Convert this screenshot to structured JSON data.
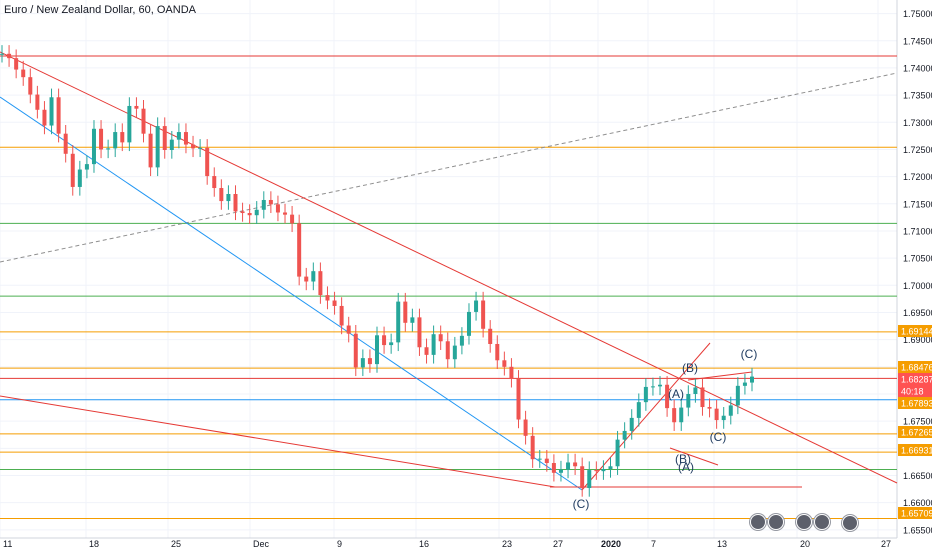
{
  "title": "Euro / New Zealand Dollar, 60, OANDA",
  "chart_data": {
    "type": "candlestick",
    "y_ticks": [
      "1.75000",
      "1.74500",
      "1.74000",
      "1.73500",
      "1.73000",
      "1.72500",
      "1.72000",
      "1.71500",
      "1.71000",
      "1.70500",
      "1.70000",
      "1.69500",
      "1.69000",
      "1.68500",
      "1.68000",
      "1.67500",
      "1.67000",
      "1.66500",
      "1.66000",
      "1.65500"
    ],
    "x_ticks": [
      "11",
      "18",
      "25",
      "Dec",
      "9",
      "16",
      "23",
      "27",
      "2020",
      "7",
      "13",
      "20",
      "27"
    ],
    "ylim": [
      1.6535,
      1.7525
    ],
    "price_labels": [
      {
        "text": "1.69144",
        "color": "#f59d00"
      },
      {
        "text": "1.68476",
        "color": "#f59d00"
      },
      {
        "text": "1.68287",
        "color": "#ff5252"
      },
      {
        "text": "40:18",
        "color": "#ff5252"
      },
      {
        "text": "1.67893",
        "color": "#f59d00"
      },
      {
        "text": "1.67265",
        "color": "#f59d00"
      },
      {
        "text": "1.66931",
        "color": "#f59d00"
      },
      {
        "text": "1.65709",
        "color": "#f59d00"
      }
    ],
    "wave_labels": [
      {
        "text": "(C)"
      },
      {
        "text": "(A)"
      },
      {
        "text": "(B)"
      },
      {
        "text": "(A)"
      },
      {
        "text": "(B)"
      },
      {
        "text": "(C)"
      },
      {
        "text": "(C)"
      }
    ],
    "colors": {
      "up": "#26a69a",
      "down": "#ef5350",
      "horizontal_red": "#e53935",
      "horizontal_orange": "#f59d00",
      "horizontal_green": "#4caf50",
      "trend_blue": "#2196f3"
    },
    "series": [
      {
        "name": "EURNZD",
        "values": [
          1.7426,
          1.7418,
          1.7397,
          1.7383,
          1.7351,
          1.7323,
          1.7294,
          1.7346,
          1.7279,
          1.7242,
          1.7181,
          1.7213,
          1.7223,
          1.7288,
          1.725,
          1.7252,
          1.7282,
          1.7263,
          1.733,
          1.7325,
          1.7279,
          1.7217,
          1.7293,
          1.7249,
          1.7268,
          1.7282,
          1.7259,
          1.7252,
          1.7253,
          1.7201,
          1.7179,
          1.7155,
          1.7168,
          1.7136,
          1.7133,
          1.7129,
          1.7139,
          1.7157,
          1.7149,
          1.7134,
          1.713,
          1.7114,
          1.7016,
          1.7007,
          1.7026,
          1.6982,
          1.6972,
          1.6962,
          1.6926,
          1.6911,
          1.6849,
          1.6866,
          1.6855,
          1.6908,
          1.689,
          1.6895,
          1.697,
          1.6931,
          1.6941,
          1.6886,
          1.6872,
          1.691,
          1.6897,
          1.6864,
          1.6889,
          1.6907,
          1.6951,
          1.6972,
          1.692,
          1.6892,
          1.6862,
          1.685,
          1.6828,
          1.6753,
          1.6723,
          1.668,
          1.6681,
          1.6673,
          1.6655,
          1.6661,
          1.6674,
          1.6667,
          1.6627,
          1.666,
          1.6658,
          1.6662,
          1.6667,
          1.6716,
          1.6732,
          1.6756,
          1.6785,
          1.6813,
          1.6814,
          1.6817,
          1.6774,
          1.6748,
          1.6775,
          1.68,
          1.6812,
          1.6776,
          1.6773,
          1.6752,
          1.676,
          1.6779,
          1.6815,
          1.6821,
          1.6832
        ]
      }
    ],
    "hlines": [
      {
        "y": 1.7422,
        "color": "red"
      },
      {
        "y": 1.7254,
        "color": "orange"
      },
      {
        "y": 1.7114,
        "color": "green"
      },
      {
        "y": 1.698,
        "color": "green"
      },
      {
        "y": 1.69144,
        "color": "orange"
      },
      {
        "y": 1.68476,
        "color": "orange"
      },
      {
        "y": 1.68287,
        "color": "red"
      },
      {
        "y": 1.67893,
        "color": "blue"
      },
      {
        "y": 1.67265,
        "color": "orange"
      },
      {
        "y": 1.66931,
        "color": "orange"
      },
      {
        "y": 1.6661,
        "color": "green"
      },
      {
        "y": 1.65709,
        "color": "orange"
      }
    ],
    "grid": true
  }
}
